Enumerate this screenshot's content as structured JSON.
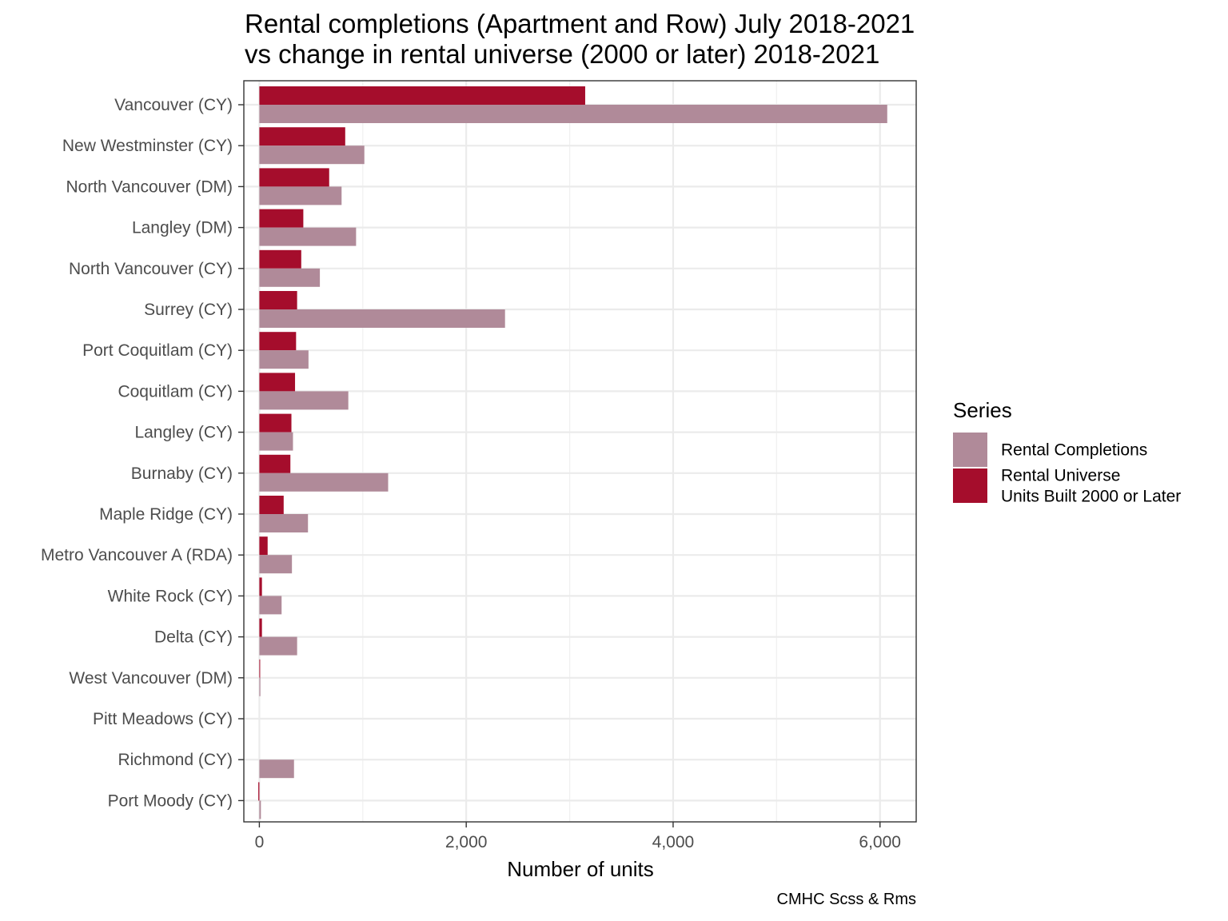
{
  "chart_data": {
    "type": "bar",
    "orientation": "horizontal",
    "title_lines": [
      "Rental completions (Apartment and Row) July 2018-2021",
      "vs change in rental universe (2000 or later) 2018-2021"
    ],
    "xlabel": "Number of units",
    "ylabel": "",
    "caption": "CMHC Scss & Rms",
    "xlim": [
      -150,
      6350
    ],
    "x_ticks": [
      0,
      2000,
      4000,
      6000
    ],
    "x_tick_labels": [
      "0",
      "2,000",
      "4,000",
      "6,000"
    ],
    "grid": true,
    "legend": {
      "title": "Series",
      "position": "right",
      "entries": [
        {
          "label_lines": [
            "Rental Completions"
          ],
          "color": "#b08a99"
        },
        {
          "label_lines": [
            "Rental Universe",
            "Units Built 2000 or Later"
          ],
          "color": "#a50d2c"
        }
      ]
    },
    "categories": [
      "Vancouver (CY)",
      "New Westminster (CY)",
      "North Vancouver (DM)",
      "Langley (DM)",
      "North Vancouver (CY)",
      "Surrey (CY)",
      "Port Coquitlam (CY)",
      "Coquitlam (CY)",
      "Langley (CY)",
      "Burnaby (CY)",
      "Maple Ridge (CY)",
      "Metro Vancouver A (RDA)",
      "White Rock (CY)",
      "Delta (CY)",
      "West Vancouver (DM)",
      "Pitt Meadows (CY)",
      "Richmond (CY)",
      "Port Moody (CY)"
    ],
    "series": [
      {
        "name": "Rental Universe Units Built 2000 or Later",
        "color": "#a50d2c",
        "values": [
          3150,
          830,
          675,
          425,
          405,
          365,
          355,
          345,
          310,
          300,
          235,
          80,
          25,
          25,
          5,
          0,
          0,
          -10
        ]
      },
      {
        "name": "Rental Completions",
        "color": "#b08a99",
        "values": [
          6070,
          1015,
          795,
          935,
          585,
          2375,
          475,
          860,
          325,
          1245,
          470,
          315,
          215,
          365,
          10,
          0,
          335,
          15
        ]
      }
    ]
  }
}
